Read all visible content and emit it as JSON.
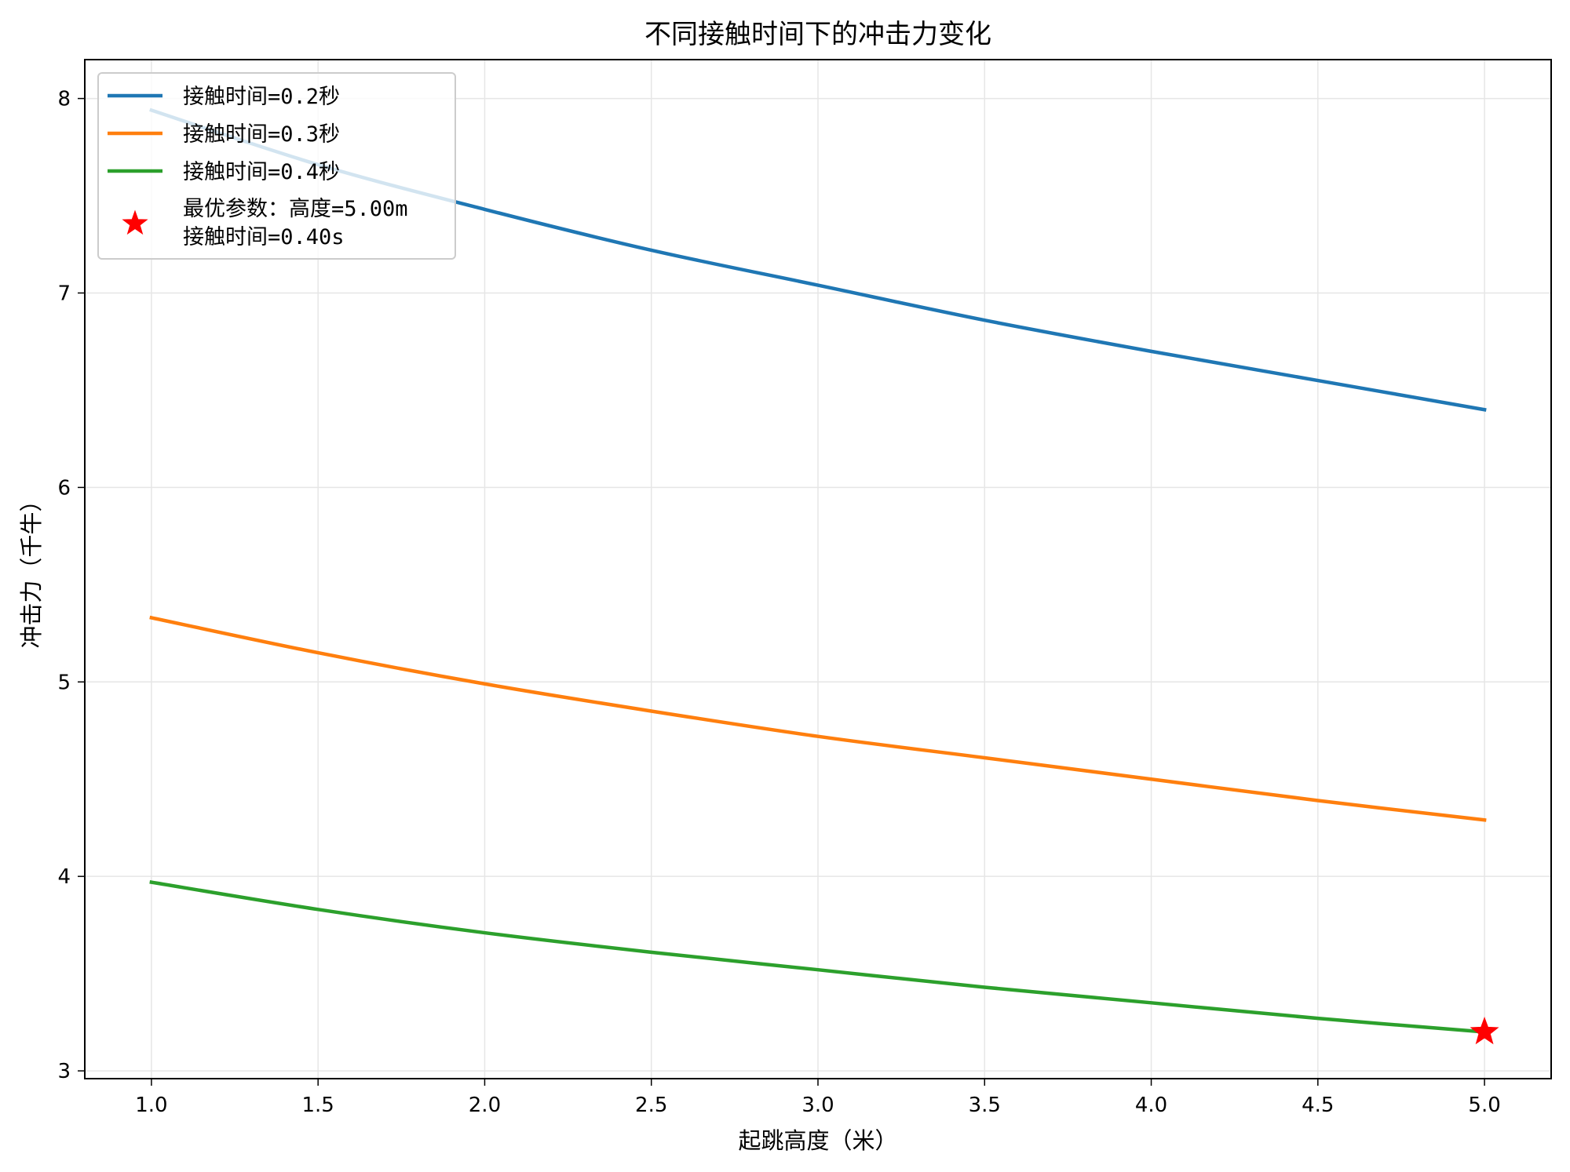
{
  "chart_data": {
    "type": "line",
    "title": "不同接触时间下的冲击力变化",
    "xlabel": "起跳高度（米）",
    "ylabel": "冲击力（千牛）",
    "xlim": [
      0.8,
      5.2
    ],
    "ylim": [
      2.96,
      8.2
    ],
    "xticks": [
      1.0,
      1.5,
      2.0,
      2.5,
      3.0,
      3.5,
      4.0,
      4.5,
      5.0
    ],
    "xtick_labels": [
      "1.0",
      "1.5",
      "2.0",
      "2.5",
      "3.0",
      "3.5",
      "4.0",
      "4.5",
      "5.0"
    ],
    "yticks": [
      3,
      4,
      5,
      6,
      7,
      8
    ],
    "ytick_labels": [
      "3",
      "4",
      "5",
      "6",
      "7",
      "8"
    ],
    "grid": true,
    "legend_position": "top-left",
    "x": [
      1.0,
      1.5,
      2.0,
      2.5,
      3.0,
      3.5,
      4.0,
      4.5,
      5.0
    ],
    "series": [
      {
        "name": "接触时间=0.2秒",
        "color": "#1f77b4",
        "values": [
          7.94,
          7.66,
          7.43,
          7.22,
          7.04,
          6.86,
          6.7,
          6.55,
          6.4
        ]
      },
      {
        "name": "接触时间=0.3秒",
        "color": "#ff7f0e",
        "values": [
          5.33,
          5.15,
          4.99,
          4.85,
          4.72,
          4.61,
          4.5,
          4.39,
          4.29
        ]
      },
      {
        "name": "接触时间=0.4秒",
        "color": "#2ca02c",
        "values": [
          3.97,
          3.83,
          3.71,
          3.61,
          3.52,
          3.43,
          3.35,
          3.27,
          3.2
        ]
      }
    ],
    "marker": {
      "x": 5.0,
      "y": 3.2,
      "color": "#ff0000",
      "shape": "star",
      "label_line1": "最优参数：高度=5.00m",
      "label_line2": "接触时间=0.40s"
    }
  }
}
